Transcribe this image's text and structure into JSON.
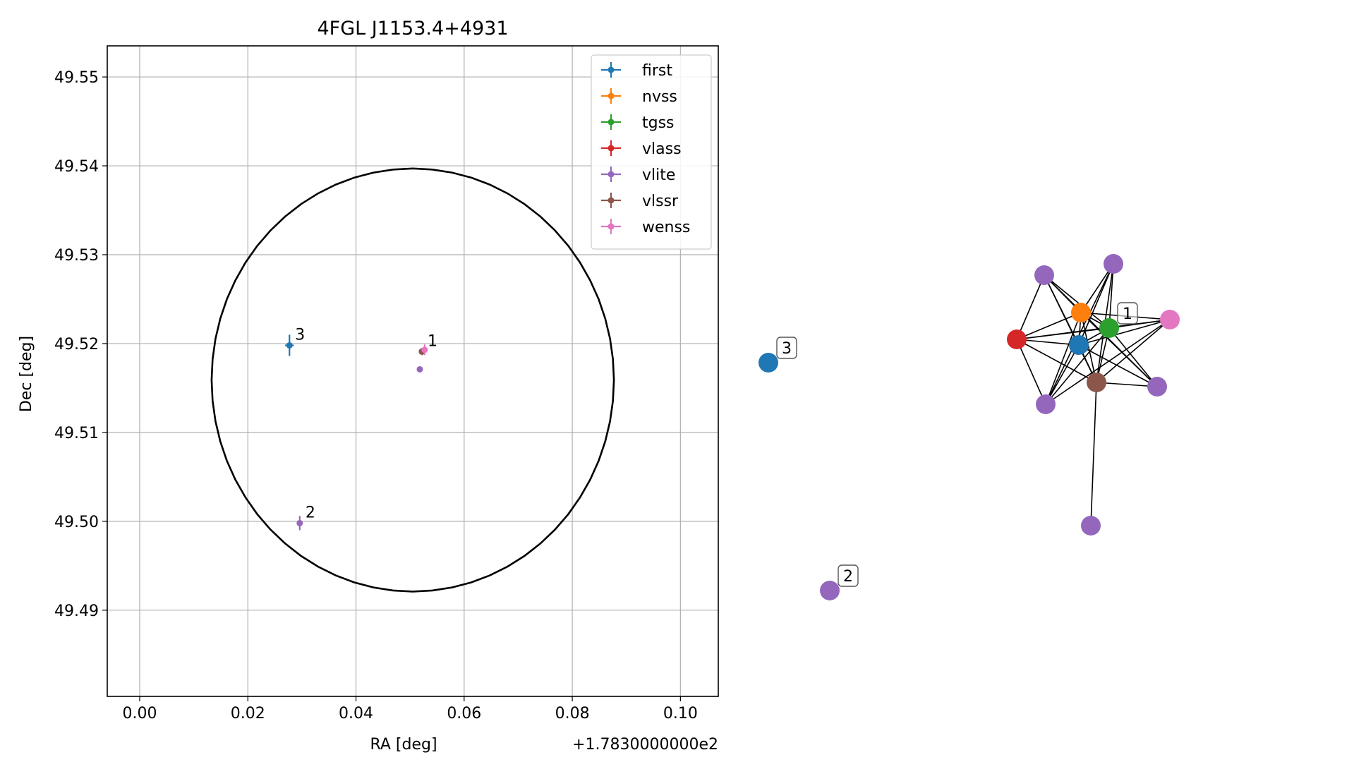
{
  "chart_data": [
    {
      "type": "scatter",
      "title": "4FGL J1153.4+4931",
      "xlabel": "RA [deg]",
      "ylabel": "Dec [deg]",
      "x_offset_label": "+1.7830000000e2",
      "xlim": [
        -0.006,
        0.107
      ],
      "ylim": [
        49.4803,
        49.5535
      ],
      "xticks": [
        "0.00",
        "0.02",
        "0.04",
        "0.06",
        "0.08",
        "0.10"
      ],
      "xtick_values": [
        0.0,
        0.02,
        0.04,
        0.06,
        0.08,
        0.1
      ],
      "yticks": [
        "49.49",
        "49.50",
        "49.51",
        "49.52",
        "49.53",
        "49.54",
        "49.55"
      ],
      "ytick_values": [
        49.49,
        49.5,
        49.51,
        49.52,
        49.53,
        49.54,
        49.55
      ],
      "grid": true,
      "legend_position": "top-right",
      "ellipse": {
        "center": [
          0.0505,
          49.5159
        ],
        "radius_x": 0.0372,
        "radius_y": 0.0238,
        "color": "#000000"
      },
      "series": [
        {
          "name": "first",
          "color": "#1f77b4",
          "points": [
            {
              "x": 0.0277,
              "y": 49.5198,
              "xerr": 0.0008,
              "yerr": 0.0012
            }
          ]
        },
        {
          "name": "nvss",
          "color": "#ff7f0e",
          "points": [
            {
              "x": 0.0522,
              "y": 49.5191,
              "xerr": 0.0002,
              "yerr": 0.0002
            }
          ]
        },
        {
          "name": "tgss",
          "color": "#2ca02c",
          "points": [
            {
              "x": 0.0522,
              "y": 49.5191,
              "xerr": 0.0002,
              "yerr": 0.0002
            }
          ]
        },
        {
          "name": "vlass",
          "color": "#d62728",
          "points": [
            {
              "x": 0.0522,
              "y": 49.5191,
              "xerr": 0.0002,
              "yerr": 0.0002
            }
          ]
        },
        {
          "name": "vlite",
          "color": "#9467bd",
          "points": [
            {
              "x": 0.0522,
              "y": 49.5191,
              "xerr": 0.0004,
              "yerr": 0.0004
            },
            {
              "x": 0.0518,
              "y": 49.5171,
              "xerr": 0.0002,
              "yerr": 0.0002
            },
            {
              "x": 0.0296,
              "y": 49.4998,
              "xerr": 0.0004,
              "yerr": 0.0008
            }
          ]
        },
        {
          "name": "vlssr",
          "color": "#8c564b",
          "points": [
            {
              "x": 0.0522,
              "y": 49.5191,
              "xerr": 0.0002,
              "yerr": 0.0002
            }
          ]
        },
        {
          "name": "wenss",
          "color": "#e377c2",
          "points": [
            {
              "x": 0.0527,
              "y": 49.5193,
              "xerr": 0.0006,
              "yerr": 0.0006
            }
          ]
        }
      ],
      "annotations": [
        {
          "text": "1",
          "x": 0.0522,
          "y": 49.5191
        },
        {
          "text": "2",
          "x": 0.0296,
          "y": 49.4998
        },
        {
          "text": "3",
          "x": 0.0277,
          "y": 49.5198
        }
      ]
    },
    {
      "type": "network",
      "nodes": [
        {
          "id": "first",
          "color": "#1f77b4"
        },
        {
          "id": "nvss",
          "color": "#ff7f0e"
        },
        {
          "id": "tgss",
          "color": "#2ca02c"
        },
        {
          "id": "vlass",
          "color": "#d62728"
        },
        {
          "id": "vlite_a",
          "color": "#9467bd"
        },
        {
          "id": "vlite_b",
          "color": "#9467bd"
        },
        {
          "id": "vlite_c",
          "color": "#9467bd"
        },
        {
          "id": "vlite_d",
          "color": "#9467bd"
        },
        {
          "id": "vlite_e",
          "color": "#9467bd"
        },
        {
          "id": "vlssr",
          "color": "#8c564b"
        },
        {
          "id": "wenss",
          "color": "#e377c2"
        },
        {
          "id": "iso3",
          "color": "#1f77b4"
        },
        {
          "id": "iso2",
          "color": "#9467bd"
        }
      ],
      "labels": [
        {
          "text": "1",
          "node": "tgss"
        },
        {
          "text": "3",
          "node": "iso3"
        },
        {
          "text": "2",
          "node": "iso2"
        }
      ]
    }
  ]
}
